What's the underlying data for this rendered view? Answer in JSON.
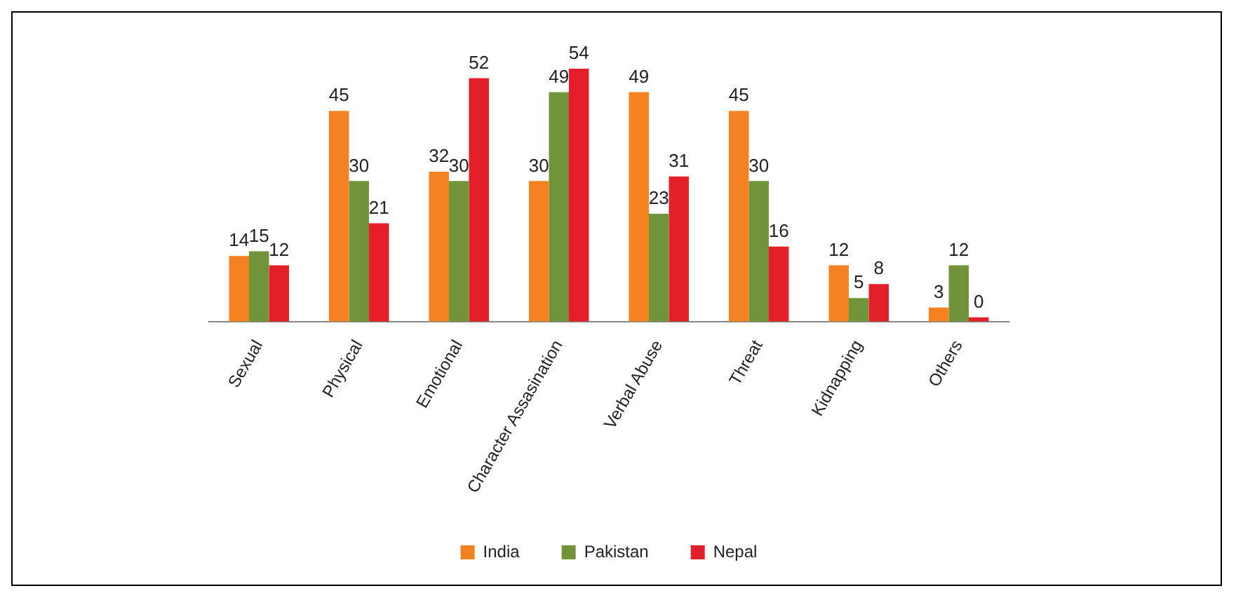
{
  "chart_data": {
    "type": "bar",
    "categories": [
      "Sexual",
      "Physical",
      "Emotional",
      "Character Assasination",
      "Verbal Abuse",
      "Threat",
      "Kidnapping",
      "Others"
    ],
    "series": [
      {
        "name": "India",
        "color": "#f58220",
        "values": [
          14,
          45,
          32,
          30,
          49,
          45,
          12,
          3
        ]
      },
      {
        "name": "Pakistan",
        "color": "#71933a",
        "values": [
          15,
          30,
          30,
          49,
          23,
          30,
          5,
          12
        ]
      },
      {
        "name": "Nepal",
        "color": "#e3202a",
        "values": [
          12,
          21,
          52,
          54,
          31,
          16,
          8,
          0
        ]
      }
    ],
    "data_labels": true,
    "legend": "bottom",
    "grid": false
  }
}
